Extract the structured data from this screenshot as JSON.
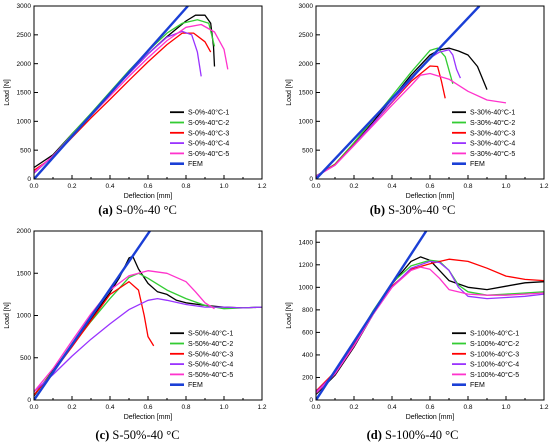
{
  "chart_data": [
    {
      "type": "line",
      "caption_letter": "(a)",
      "caption_text": " S-0%-40 °C",
      "xlabel": "Deflection [mm]",
      "ylabel": "Load [N]",
      "xlim": [
        0,
        1.2
      ],
      "ylim": [
        0,
        3000
      ],
      "xticks": [
        "0.0",
        "0.2",
        "0.4",
        "0.6",
        "0.8",
        "1.0",
        "1.2"
      ],
      "yticks": [
        "0",
        "500",
        "1000",
        "1500",
        "2000",
        "2500",
        "3000"
      ],
      "grid": false,
      "legend_position": "bottom-right",
      "series": [
        {
          "name": "S-0%-40°C-1",
          "color": "#000000",
          "x": [
            0,
            0.1,
            0.2,
            0.3,
            0.4,
            0.5,
            0.6,
            0.7,
            0.8,
            0.85,
            0.9,
            0.93,
            0.945,
            0.95
          ],
          "y": [
            200,
            420,
            780,
            1130,
            1480,
            1830,
            2170,
            2470,
            2740,
            2840,
            2840,
            2700,
            2300,
            1950
          ]
        },
        {
          "name": "S-0%-40°C-2",
          "color": "#33cc33",
          "x": [
            0,
            0.1,
            0.2,
            0.3,
            0.4,
            0.5,
            0.6,
            0.7,
            0.78,
            0.86,
            0.92,
            0.95
          ],
          "y": [
            100,
            400,
            780,
            1140,
            1510,
            1880,
            2220,
            2530,
            2700,
            2760,
            2700,
            2300
          ]
        },
        {
          "name": "S-0%-40°C-3",
          "color": "#ff0000",
          "x": [
            0,
            0.1,
            0.2,
            0.3,
            0.4,
            0.5,
            0.6,
            0.7,
            0.78,
            0.84,
            0.9,
            0.93
          ],
          "y": [
            150,
            380,
            720,
            1060,
            1380,
            1710,
            2030,
            2330,
            2530,
            2530,
            2380,
            2200
          ]
        },
        {
          "name": "S-0%-40°C-4",
          "color": "#9933ff",
          "x": [
            0,
            0.1,
            0.2,
            0.3,
            0.4,
            0.5,
            0.6,
            0.7,
            0.78,
            0.83,
            0.86,
            0.88
          ],
          "y": [
            100,
            400,
            760,
            1120,
            1480,
            1830,
            2170,
            2460,
            2560,
            2500,
            2200,
            1780
          ]
        },
        {
          "name": "S-0%-40°C-5",
          "color": "#ff33cc",
          "x": [
            0,
            0.1,
            0.2,
            0.3,
            0.4,
            0.5,
            0.6,
            0.7,
            0.8,
            0.88,
            0.95,
            1.0,
            1.02
          ],
          "y": [
            120,
            400,
            750,
            1100,
            1440,
            1780,
            2100,
            2400,
            2630,
            2680,
            2550,
            2250,
            1900
          ]
        },
        {
          "name": "FEM",
          "color": "#1a3fd6",
          "x": [
            0,
            0.81
          ],
          "y": [
            0,
            3000
          ]
        }
      ]
    },
    {
      "type": "line",
      "caption_letter": "(b)",
      "caption_text": " S-30%-40 °C",
      "xlabel": "Deflection [mm]",
      "ylabel": "Load [N]",
      "xlim": [
        0,
        1.2
      ],
      "ylim": [
        0,
        3000
      ],
      "xticks": [
        "0.0",
        "0.2",
        "0.4",
        "0.6",
        "0.8",
        "1.0",
        "1.2"
      ],
      "yticks": [
        "0",
        "500",
        "1000",
        "1500",
        "2000",
        "2500",
        "3000"
      ],
      "grid": false,
      "legend_position": "bottom-right",
      "series": [
        {
          "name": "S-30%-40°C-1",
          "color": "#000000",
          "x": [
            0,
            0.1,
            0.2,
            0.3,
            0.4,
            0.5,
            0.6,
            0.65,
            0.7,
            0.75,
            0.8,
            0.85,
            0.9
          ],
          "y": [
            50,
            250,
            600,
            990,
            1390,
            1800,
            2150,
            2240,
            2270,
            2220,
            2150,
            1950,
            1550
          ]
        },
        {
          "name": "S-30%-40°C-2",
          "color": "#33cc33",
          "x": [
            0,
            0.1,
            0.2,
            0.3,
            0.4,
            0.5,
            0.6,
            0.64,
            0.68,
            0.72
          ],
          "y": [
            50,
            260,
            630,
            1030,
            1440,
            1850,
            2230,
            2270,
            2120,
            1650
          ]
        },
        {
          "name": "S-30%-40°C-3",
          "color": "#ff0000",
          "x": [
            0,
            0.1,
            0.2,
            0.3,
            0.4,
            0.5,
            0.6,
            0.64,
            0.66,
            0.68
          ],
          "y": [
            50,
            250,
            600,
            960,
            1330,
            1690,
            1960,
            1950,
            1700,
            1400
          ]
        },
        {
          "name": "S-30%-40°C-4",
          "color": "#9933ff",
          "x": [
            0,
            0.1,
            0.2,
            0.3,
            0.4,
            0.5,
            0.6,
            0.65,
            0.7,
            0.72,
            0.74,
            0.76
          ],
          "y": [
            50,
            240,
            590,
            960,
            1340,
            1720,
            2100,
            2200,
            2240,
            2150,
            1900,
            1750
          ]
        },
        {
          "name": "S-30%-40°C-5",
          "color": "#ff33cc",
          "x": [
            0,
            0.1,
            0.2,
            0.3,
            0.4,
            0.5,
            0.55,
            0.6,
            0.7,
            0.8,
            0.9,
            1.0
          ],
          "y": [
            40,
            240,
            580,
            930,
            1280,
            1620,
            1800,
            1830,
            1730,
            1520,
            1370,
            1320
          ]
        },
        {
          "name": "FEM",
          "color": "#1a3fd6",
          "x": [
            0,
            0.86
          ],
          "y": [
            0,
            3000
          ]
        }
      ]
    },
    {
      "type": "line",
      "caption_letter": "(c)",
      "caption_text": " S-50%-40 °C",
      "xlabel": "Deflection [mm]",
      "ylabel": "Load [N]",
      "xlim": [
        0,
        1.2
      ],
      "ylim": [
        0,
        2000
      ],
      "xticks": [
        "0.0",
        "0.2",
        "0.4",
        "0.6",
        "0.8",
        "1.0",
        "1.2"
      ],
      "yticks": [
        "0",
        "500",
        "1000",
        "1500",
        "2000"
      ],
      "grid": false,
      "legend_position": "bottom-right",
      "series": [
        {
          "name": "S-50%-40°C-1",
          "color": "#000000",
          "x": [
            0,
            0.1,
            0.2,
            0.3,
            0.4,
            0.45,
            0.5,
            0.52,
            0.55,
            0.6,
            0.65,
            0.7,
            0.75,
            0.8,
            0.9,
            1.0,
            1.1,
            1.2
          ],
          "y": [
            50,
            350,
            650,
            960,
            1270,
            1450,
            1680,
            1700,
            1550,
            1380,
            1280,
            1250,
            1180,
            1150,
            1120,
            1100,
            1090,
            1100
          ]
        },
        {
          "name": "S-50%-40°C-2",
          "color": "#33cc33",
          "x": [
            0,
            0.1,
            0.2,
            0.3,
            0.4,
            0.5,
            0.55,
            0.6,
            0.7,
            0.8,
            0.9,
            1.0,
            1.1,
            1.2
          ],
          "y": [
            60,
            340,
            640,
            930,
            1200,
            1450,
            1500,
            1440,
            1300,
            1200,
            1120,
            1080,
            1090,
            1100
          ]
        },
        {
          "name": "S-50%-40°C-3",
          "color": "#ff0000",
          "x": [
            0,
            0.1,
            0.2,
            0.3,
            0.4,
            0.5,
            0.55,
            0.58,
            0.6,
            0.63
          ],
          "y": [
            60,
            330,
            630,
            940,
            1250,
            1400,
            1300,
            1000,
            750,
            640
          ]
        },
        {
          "name": "S-50%-40°C-4",
          "color": "#9933ff",
          "x": [
            0,
            0.1,
            0.2,
            0.3,
            0.4,
            0.5,
            0.6,
            0.65,
            0.7,
            0.8,
            0.9,
            1.0,
            1.1,
            1.2
          ],
          "y": [
            100,
            300,
            520,
            720,
            900,
            1070,
            1180,
            1200,
            1180,
            1130,
            1100,
            1100,
            1090,
            1100
          ]
        },
        {
          "name": "S-50%-40°C-5",
          "color": "#ff33cc",
          "x": [
            0,
            0.1,
            0.2,
            0.3,
            0.4,
            0.5,
            0.6,
            0.7,
            0.8,
            0.85,
            0.9,
            0.95
          ],
          "y": [
            100,
            370,
            700,
            1020,
            1300,
            1470,
            1530,
            1500,
            1400,
            1280,
            1150,
            1080
          ]
        },
        {
          "name": "FEM",
          "color": "#1a3fd6",
          "x": [
            0,
            0.61
          ],
          "y": [
            0,
            2000
          ]
        }
      ]
    },
    {
      "type": "line",
      "caption_letter": "(d)",
      "caption_text": " S-100%-40 °C",
      "xlabel": "Deflection [mm]",
      "ylabel": "Load [N]",
      "xlim": [
        0,
        1.2
      ],
      "ylim": [
        0,
        1500
      ],
      "xticks": [
        "0.0",
        "0.2",
        "0.4",
        "0.6",
        "0.8",
        "1.0",
        "1.2"
      ],
      "yticks": [
        "0",
        "200",
        "400",
        "600",
        "800",
        "1000",
        "1200",
        "1400"
      ],
      "grid": false,
      "legend_position": "bottom-right",
      "series": [
        {
          "name": "S-100%-40°C-1",
          "color": "#000000",
          "x": [
            0,
            0.1,
            0.2,
            0.3,
            0.4,
            0.5,
            0.55,
            0.6,
            0.65,
            0.7,
            0.8,
            0.9,
            1.0,
            1.1,
            1.2
          ],
          "y": [
            50,
            220,
            470,
            760,
            1030,
            1230,
            1270,
            1240,
            1150,
            1060,
            1000,
            980,
            1010,
            1040,
            1050
          ]
        },
        {
          "name": "S-100%-40°C-2",
          "color": "#33cc33",
          "x": [
            0,
            0.1,
            0.2,
            0.3,
            0.4,
            0.5,
            0.6,
            0.65,
            0.7,
            0.75,
            0.8,
            0.9,
            1.0,
            1.1,
            1.2
          ],
          "y": [
            60,
            240,
            500,
            790,
            1040,
            1190,
            1240,
            1230,
            1150,
            1020,
            960,
            930,
            940,
            950,
            960
          ]
        },
        {
          "name": "S-100%-40°C-3",
          "color": "#ff0000",
          "x": [
            0,
            0.1,
            0.2,
            0.3,
            0.4,
            0.5,
            0.6,
            0.7,
            0.8,
            0.9,
            1.0,
            1.1,
            1.2
          ],
          "y": [
            80,
            250,
            490,
            760,
            1010,
            1160,
            1210,
            1250,
            1230,
            1170,
            1100,
            1070,
            1060
          ]
        },
        {
          "name": "S-100%-40°C-4",
          "color": "#9933ff",
          "x": [
            0,
            0.1,
            0.2,
            0.3,
            0.4,
            0.5,
            0.6,
            0.65,
            0.7,
            0.75,
            0.8,
            0.9,
            1.0,
            1.1,
            1.2
          ],
          "y": [
            70,
            240,
            480,
            760,
            1000,
            1170,
            1230,
            1220,
            1150,
            1000,
            920,
            900,
            910,
            920,
            940
          ]
        },
        {
          "name": "S-100%-40°C-5",
          "color": "#ff33cc",
          "x": [
            0,
            0.1,
            0.2,
            0.3,
            0.4,
            0.5,
            0.55,
            0.6,
            0.65,
            0.7,
            0.8,
            0.9,
            1.0,
            1.1,
            1.2
          ],
          "y": [
            60,
            230,
            480,
            760,
            1000,
            1150,
            1180,
            1160,
            1080,
            980,
            940,
            930,
            930,
            940,
            950
          ]
        },
        {
          "name": "FEM",
          "color": "#1a3fd6",
          "x": [
            0,
            0.58
          ],
          "y": [
            0,
            1500
          ]
        }
      ]
    }
  ]
}
